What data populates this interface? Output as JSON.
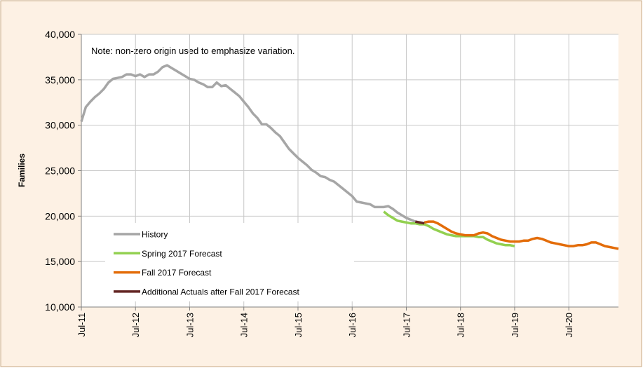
{
  "chart_data": {
    "type": "line",
    "note": "Note: non-zero origin used to emphasize variation.",
    "ylabel": "Families",
    "categories": [
      "Jul-11",
      null,
      null,
      null,
      null,
      null,
      null,
      null,
      null,
      null,
      null,
      null,
      "Jul-12",
      null,
      null,
      null,
      null,
      null,
      null,
      null,
      null,
      null,
      null,
      null,
      "Jul-13",
      null,
      null,
      null,
      null,
      null,
      null,
      null,
      null,
      null,
      null,
      null,
      "Jul-14",
      null,
      null,
      null,
      null,
      null,
      null,
      null,
      null,
      null,
      null,
      null,
      "Jul-15",
      null,
      null,
      null,
      null,
      null,
      null,
      null,
      null,
      null,
      null,
      null,
      "Jul-16",
      null,
      null,
      null,
      null,
      null,
      null,
      null,
      null,
      null,
      null,
      null,
      "Jul-17",
      null,
      null,
      null,
      null,
      null,
      null,
      null,
      null,
      null,
      null,
      null,
      "Jul-18",
      null,
      null,
      null,
      null,
      null,
      null,
      null,
      null,
      null,
      null,
      null,
      "Jul-19",
      null,
      null,
      null,
      null,
      null,
      null,
      null,
      null,
      null,
      null,
      null,
      "Jul-20",
      null,
      null,
      null,
      null,
      null,
      null,
      null,
      null,
      null,
      null,
      null
    ],
    "series": [
      {
        "name": "History",
        "color": "#a6a6a6",
        "values": [
          30400,
          32000,
          32600,
          33100,
          33500,
          34000,
          34700,
          35100,
          35200,
          35300,
          35600,
          35600,
          35400,
          35600,
          35300,
          35600,
          35600,
          35900,
          36400,
          36600,
          36300,
          36000,
          35700,
          35400,
          35100,
          35000,
          34700,
          34500,
          34200,
          34200,
          34700,
          34300,
          34400,
          34000,
          33600,
          33200,
          32600,
          32000,
          31300,
          30800,
          30100,
          30100,
          29700,
          29200,
          28800,
          28100,
          27400,
          26900,
          26400,
          26000,
          25600,
          25100,
          24800,
          24400,
          24300,
          24000,
          23800,
          23400,
          23000,
          22600,
          22200,
          21600,
          21500,
          21400,
          21300,
          21000,
          21000,
          21000,
          21100,
          20800,
          20400,
          20100,
          19800,
          19600,
          19400,
          null,
          null,
          null,
          null,
          null,
          null,
          null,
          null,
          null,
          null,
          null,
          null,
          null,
          null,
          null,
          null,
          null,
          null,
          null,
          null,
          null,
          null,
          null,
          null,
          null,
          null,
          null,
          null,
          null,
          null,
          null,
          null,
          null,
          null,
          null,
          null,
          null,
          null,
          null,
          null,
          null,
          null,
          null,
          null,
          null
        ]
      },
      {
        "name": "Spring 2017 Forecast",
        "color": "#92d050",
        "values": [
          null,
          null,
          null,
          null,
          null,
          null,
          null,
          null,
          null,
          null,
          null,
          null,
          null,
          null,
          null,
          null,
          null,
          null,
          null,
          null,
          null,
          null,
          null,
          null,
          null,
          null,
          null,
          null,
          null,
          null,
          null,
          null,
          null,
          null,
          null,
          null,
          null,
          null,
          null,
          null,
          null,
          null,
          null,
          null,
          null,
          null,
          null,
          null,
          null,
          null,
          null,
          null,
          null,
          null,
          null,
          null,
          null,
          null,
          null,
          null,
          null,
          null,
          null,
          null,
          null,
          null,
          null,
          20500,
          20100,
          19800,
          19500,
          19400,
          19300,
          19200,
          19200,
          19100,
          19100,
          18900,
          18600,
          18400,
          18200,
          18000,
          17900,
          17800,
          17800,
          17800,
          17800,
          17800,
          17700,
          17700,
          17400,
          17200,
          17000,
          16900,
          16800,
          16800,
          16700,
          null,
          null,
          null,
          null,
          null,
          null,
          null,
          null,
          null,
          null,
          null,
          null,
          null,
          null,
          null,
          null,
          null,
          null,
          null,
          null,
          null,
          null,
          null
        ]
      },
      {
        "name": "Fall 2017 Forecast",
        "color": "#e36c09",
        "values": [
          null,
          null,
          null,
          null,
          null,
          null,
          null,
          null,
          null,
          null,
          null,
          null,
          null,
          null,
          null,
          null,
          null,
          null,
          null,
          null,
          null,
          null,
          null,
          null,
          null,
          null,
          null,
          null,
          null,
          null,
          null,
          null,
          null,
          null,
          null,
          null,
          null,
          null,
          null,
          null,
          null,
          null,
          null,
          null,
          null,
          null,
          null,
          null,
          null,
          null,
          null,
          null,
          null,
          null,
          null,
          null,
          null,
          null,
          null,
          null,
          null,
          null,
          null,
          null,
          null,
          null,
          null,
          null,
          null,
          null,
          null,
          null,
          null,
          null,
          null,
          null,
          19300,
          19400,
          19400,
          19200,
          18900,
          18600,
          18300,
          18100,
          18000,
          17900,
          17900,
          17900,
          18100,
          18200,
          18100,
          17800,
          17600,
          17400,
          17300,
          17200,
          17200,
          17200,
          17300,
          17300,
          17500,
          17600,
          17500,
          17300,
          17100,
          17000,
          16900,
          16800,
          16700,
          16700,
          16800,
          16800,
          16900,
          17100,
          17100,
          16900,
          16700,
          16600,
          16500,
          16400
        ]
      },
      {
        "name": "Additional Actuals after Fall 2017 Forecast",
        "color": "#632523",
        "values": [
          null,
          null,
          null,
          null,
          null,
          null,
          null,
          null,
          null,
          null,
          null,
          null,
          null,
          null,
          null,
          null,
          null,
          null,
          null,
          null,
          null,
          null,
          null,
          null,
          null,
          null,
          null,
          null,
          null,
          null,
          null,
          null,
          null,
          null,
          null,
          null,
          null,
          null,
          null,
          null,
          null,
          null,
          null,
          null,
          null,
          null,
          null,
          null,
          null,
          null,
          null,
          null,
          null,
          null,
          null,
          null,
          null,
          null,
          null,
          null,
          null,
          null,
          null,
          null,
          null,
          null,
          null,
          null,
          null,
          null,
          null,
          null,
          null,
          null,
          19400,
          19300,
          19200,
          null,
          null,
          null,
          null,
          null,
          null,
          null,
          null,
          null,
          null,
          null,
          null,
          null,
          null,
          null,
          null,
          null,
          null,
          null,
          null,
          null,
          null,
          null,
          null,
          null,
          null,
          null,
          null,
          null,
          null,
          null,
          null,
          null,
          null,
          null,
          null,
          null,
          null,
          null,
          null,
          null,
          null,
          null
        ]
      }
    ],
    "ylim": [
      10000,
      40000
    ],
    "yticks": [
      {
        "value": 10000,
        "label": "10,000"
      },
      {
        "value": 15000,
        "label": "15,000"
      },
      {
        "value": 20000,
        "label": "20,000"
      },
      {
        "value": 25000,
        "label": "25,000"
      },
      {
        "value": 30000,
        "label": "30,000"
      },
      {
        "value": 35000,
        "label": "35,000"
      },
      {
        "value": 40000,
        "label": "40,000"
      }
    ],
    "grid": true,
    "legend": "lower left"
  }
}
